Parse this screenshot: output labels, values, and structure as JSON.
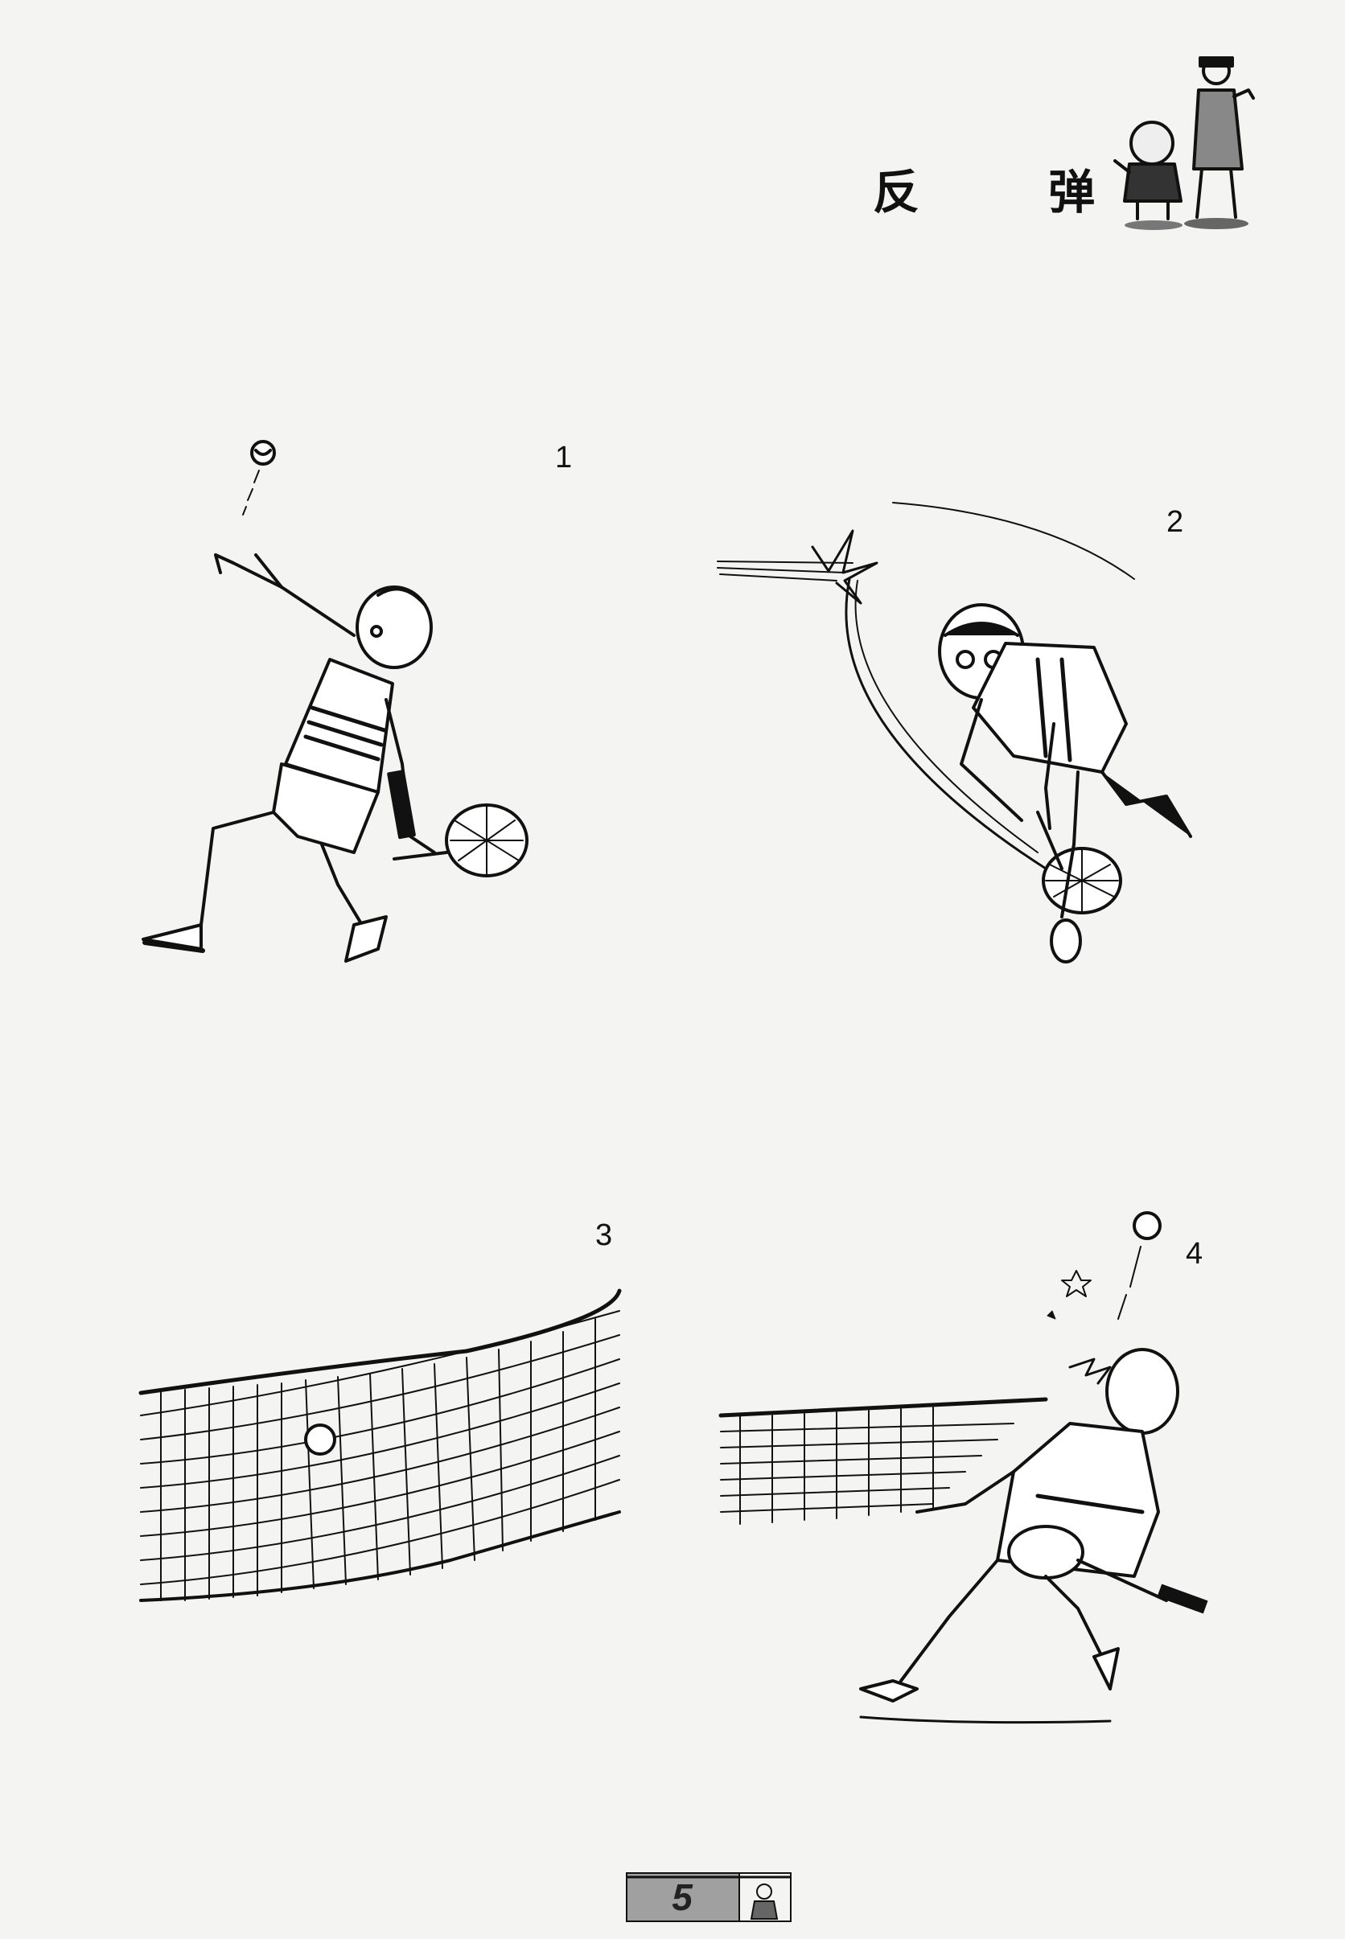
{
  "title": "反 弹",
  "panels": [
    {
      "number": "1"
    },
    {
      "number": "2"
    },
    {
      "number": "3"
    },
    {
      "number": "4"
    }
  ],
  "page_number": "5",
  "colors": {
    "ink": "#111111",
    "paper": "#f4f4f2",
    "footer_gray": "#9a9a9a"
  }
}
